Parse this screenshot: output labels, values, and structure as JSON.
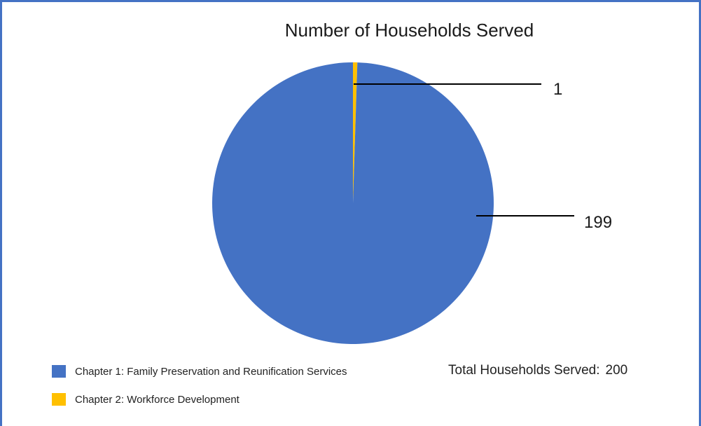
{
  "chart_data": {
    "type": "pie",
    "title": "Number of Households Served",
    "categories": [
      "Chapter 1:  Family Preservation and Reunification Services",
      "Chapter 2: Workforce Development"
    ],
    "values": [
      199,
      1
    ],
    "colors": [
      "#4472c4",
      "#ffc000"
    ],
    "data_labels": [
      "199",
      "1"
    ],
    "legend_position": "bottom-left",
    "total_label": "Total Households Served:",
    "total_value": "200"
  }
}
